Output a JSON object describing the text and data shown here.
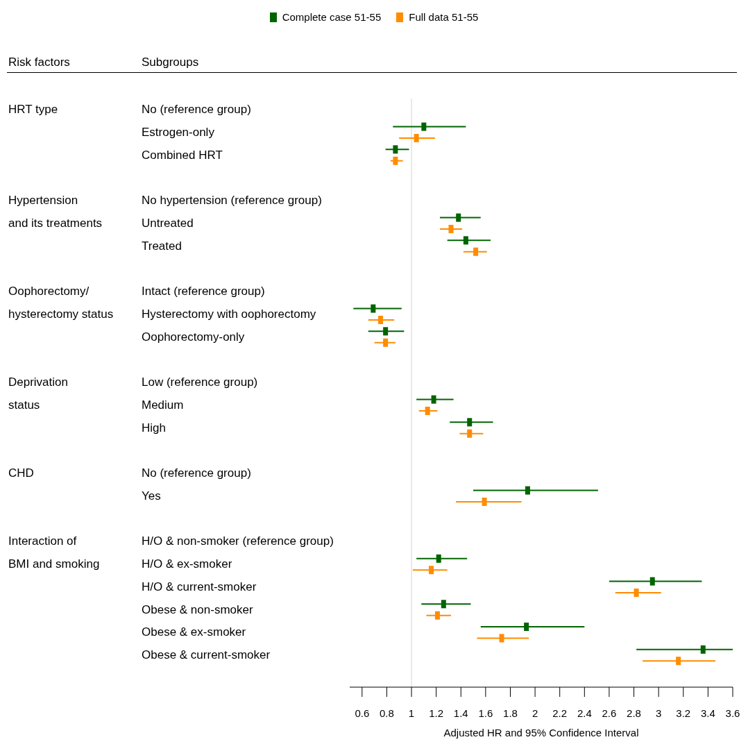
{
  "chart_data": {
    "type": "scatter",
    "orientation": "horizontal",
    "xlabel": "Adjusted HR and 95% Confidence Interval",
    "categories": [
      "No (reference group)",
      "Estrogen-only",
      "Combined HRT",
      null,
      "No hypertension (reference group)",
      "Untreated",
      "Treated",
      null,
      "Intact (reference group)",
      "Hysterectomy with oophorectomy",
      "Oophorectomy-only",
      null,
      "Low (reference group)",
      "Medium",
      "High",
      null,
      "No (reference group)",
      "Yes",
      null,
      "H/O & non-smoker (reference group)",
      "H/O & ex-smoker",
      "H/O & current-smoker",
      "Obese & non-smoker",
      "Obese & ex-smoker",
      "Obese & current-smoker"
    ],
    "series": [
      {
        "name": "Complete case 51-55",
        "color": "#006400",
        "values": [
          null,
          1.1,
          0.87,
          null,
          null,
          1.38,
          1.44,
          null,
          null,
          0.69,
          0.79,
          null,
          null,
          1.18,
          1.47,
          null,
          null,
          1.94,
          null,
          null,
          1.22,
          2.95,
          1.26,
          1.93,
          3.36
        ],
        "errors": [
          null,
          [
            0.85,
            1.44
          ],
          [
            0.79,
            0.98
          ],
          null,
          null,
          [
            1.23,
            1.56
          ],
          [
            1.29,
            1.64
          ],
          null,
          null,
          [
            0.53,
            0.92
          ],
          [
            0.65,
            0.94
          ],
          null,
          null,
          [
            1.04,
            1.34
          ],
          [
            1.31,
            1.66
          ],
          null,
          null,
          [
            1.5,
            2.51
          ],
          null,
          null,
          [
            1.04,
            1.45
          ],
          [
            2.6,
            3.35
          ],
          [
            1.08,
            1.48
          ],
          [
            1.56,
            2.4
          ],
          [
            2.82,
            3.6
          ]
        ]
      },
      {
        "name": "Full data 51-55",
        "color": "#ff8c00",
        "values": [
          null,
          1.04,
          0.87,
          null,
          null,
          1.32,
          1.52,
          null,
          null,
          0.75,
          0.79,
          null,
          null,
          1.13,
          1.47,
          null,
          null,
          1.59,
          null,
          null,
          1.16,
          2.82,
          1.21,
          1.73,
          3.16
        ],
        "errors": [
          null,
          [
            0.9,
            1.19
          ],
          [
            0.83,
            0.93
          ],
          null,
          null,
          [
            1.23,
            1.41
          ],
          [
            1.42,
            1.61
          ],
          null,
          null,
          [
            0.65,
            0.86
          ],
          [
            0.7,
            0.87
          ],
          null,
          null,
          [
            1.06,
            1.21
          ],
          [
            1.39,
            1.58
          ],
          null,
          null,
          [
            1.36,
            1.89
          ],
          null,
          null,
          [
            1.01,
            1.29
          ],
          [
            2.65,
            3.02
          ],
          [
            1.12,
            1.32
          ],
          [
            1.53,
            1.95
          ],
          [
            2.87,
            3.46
          ]
        ]
      }
    ],
    "xlim": [
      0.5,
      3.6
    ],
    "xticks": [
      0.6,
      0.8,
      1,
      1.2,
      1.4,
      1.6,
      1.8,
      2,
      2.2,
      2.4,
      2.6,
      2.8,
      3,
      3.2,
      3.4,
      3.6
    ],
    "ref_lines": [
      {
        "axis": "x",
        "value": 1,
        "color": "#d3d3d3"
      }
    ],
    "legend": "top",
    "marker": "square",
    "annotations": [
      "Risk factors",
      "Subgroups",
      "HRT type",
      "Hypertension\nand its treatments",
      "Oophorectomy/\nhysterectomy status",
      "Deprivation\nstatus",
      "CHD",
      "Interaction of\nBMI and smoking"
    ]
  }
}
